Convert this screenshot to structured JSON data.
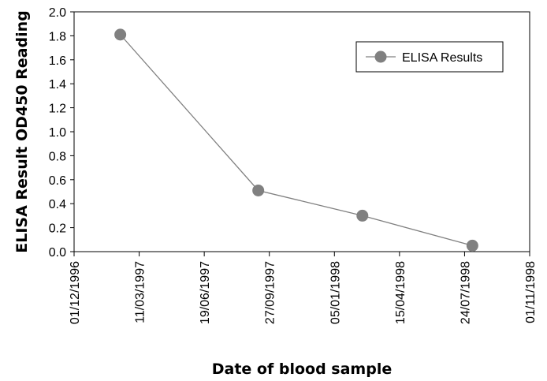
{
  "chart_data": {
    "type": "line",
    "xlabel": "Date of blood sample",
    "ylabel": "ELISA Result OD450 Reading",
    "x_axis_type": "date",
    "x_date_format": "dd/mm/yyyy",
    "xlim": [
      "01/12/1996",
      "01/11/1998"
    ],
    "x_tick_labels": [
      "01/12/1996",
      "11/03/1997",
      "19/06/1997",
      "27/09/1997",
      "05/01/1998",
      "15/04/1998",
      "24/07/1998",
      "01/11/1998"
    ],
    "ylim": [
      0,
      2.0
    ],
    "y_tick_labels": [
      "0.0",
      "0.2",
      "0.4",
      "0.6",
      "0.8",
      "1.0",
      "1.2",
      "1.4",
      "1.6",
      "1.8",
      "2.0"
    ],
    "grid": false,
    "legend_position": "top-right",
    "series": [
      {
        "name": "ELISA Results",
        "color": "#808080",
        "marker": "circle",
        "x": [
          "10/02/1997",
          "10/09/1997",
          "17/02/1998",
          "05/08/1998"
        ],
        "y": [
          1.81,
          0.51,
          0.3,
          0.05
        ]
      }
    ]
  }
}
